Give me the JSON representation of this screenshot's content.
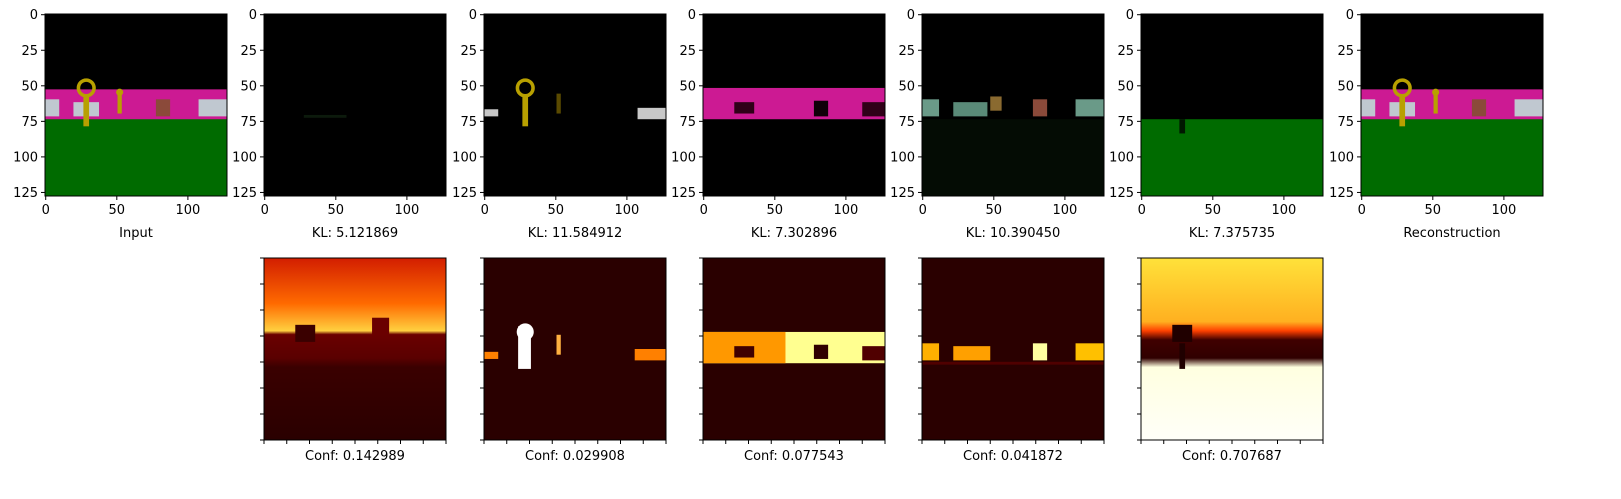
{
  "chart_data": {
    "type": "image-grid",
    "top_row": {
      "ticks": [
        0,
        25,
        50,
        75,
        100,
        125
      ],
      "xticks": [
        0,
        50,
        100
      ],
      "image_size": 128,
      "panels": [
        {
          "label": "Input",
          "content": "scene"
        },
        {
          "label": "KL: 5.121869",
          "content": "slot-1-dark"
        },
        {
          "label": "KL: 11.584912",
          "content": "slot-2-keys"
        },
        {
          "label": "KL: 7.302896",
          "content": "slot-3-wall"
        },
        {
          "label": "KL: 10.390450",
          "content": "slot-4-objects"
        },
        {
          "label": "KL: 7.375735",
          "content": "slot-5-floor"
        },
        {
          "label": "Reconstruction",
          "content": "scene"
        }
      ]
    },
    "bottom_row": {
      "colormap": "hot",
      "panels": [
        {
          "label": "Conf: 0.142989",
          "mean_confidence": 0.142989
        },
        {
          "label": "Conf: 0.029908",
          "mean_confidence": 0.029908
        },
        {
          "label": "Conf: 0.077543",
          "mean_confidence": 0.077543
        },
        {
          "label": "Conf: 0.041872",
          "mean_confidence": 0.041872
        },
        {
          "label": "Conf: 0.707687",
          "mean_confidence": 0.707687
        }
      ]
    },
    "colors": {
      "wall": "#cc1a93",
      "floor": "#006b00",
      "sky": "#000000",
      "key": "#b8a000",
      "box": "#8b4a3a",
      "car": "#c0c8d0",
      "hot_dark": "#2a0000",
      "hot_mid": "#c81e00",
      "hot_bright": "#ffe060",
      "hot_white": "#ffffff"
    }
  }
}
